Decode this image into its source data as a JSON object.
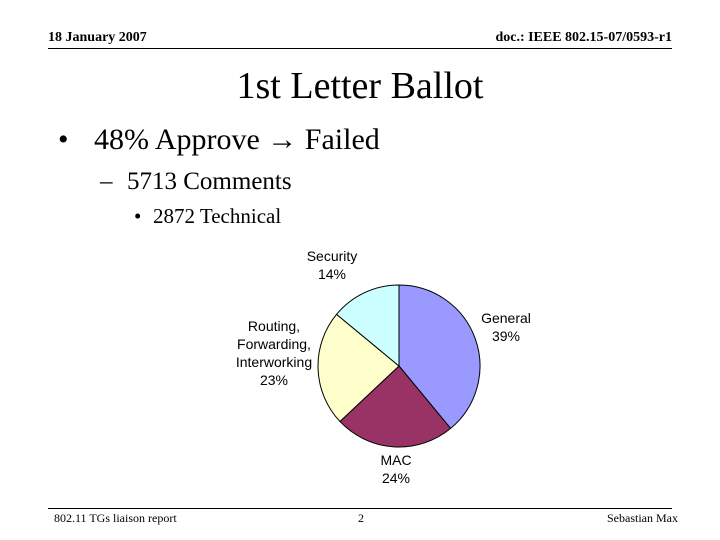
{
  "header": {
    "date": "18 January 2007",
    "doc": "doc.: IEEE 802.15-07/0593-r1"
  },
  "title": "1st Letter Ballot",
  "bullets": [
    "48% Approve → Failed",
    "5713 Comments",
    "2872 Technical"
  ],
  "chart_data": {
    "type": "pie",
    "categories": [
      "General",
      "MAC",
      "Routing, Forwarding, Interworking",
      "Security"
    ],
    "values": [
      39,
      24,
      23,
      14
    ],
    "value_labels": [
      "39%",
      "24%",
      "23%",
      "14%"
    ],
    "colors": [
      "#9999ff",
      "#993366",
      "#ffffcc",
      "#ccffff"
    ]
  },
  "footer": {
    "left": "802.11 TGs liaison report",
    "page": "2",
    "right": "Sebastian Max"
  }
}
